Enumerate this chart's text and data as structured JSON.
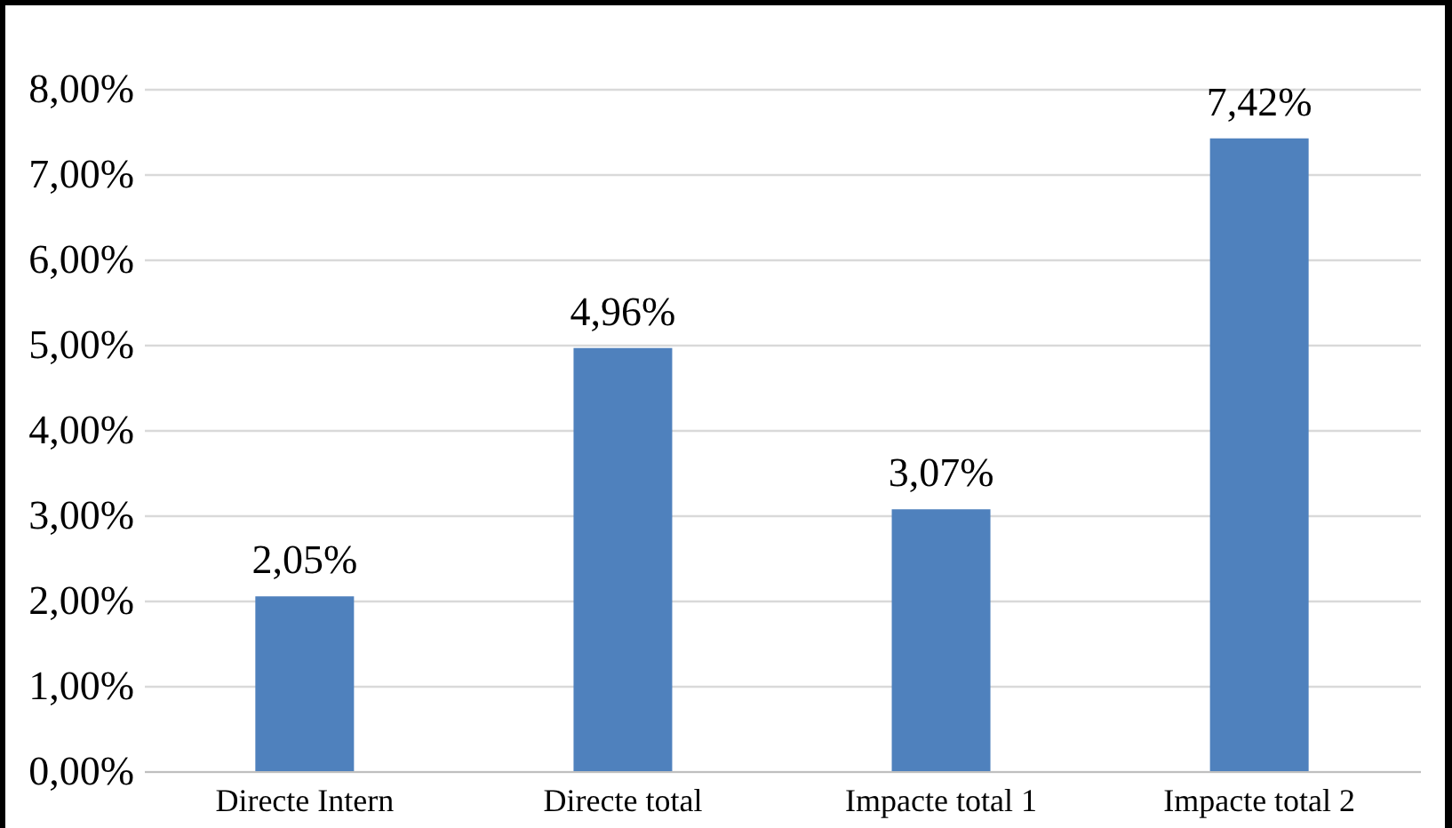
{
  "chart_data": {
    "type": "bar",
    "categories": [
      "Directe Intern",
      "Directe total",
      "Impacte total 1",
      "Impacte total 2"
    ],
    "values": [
      2.05,
      4.96,
      3.07,
      7.42
    ],
    "value_labels": [
      "2,05%",
      "4,96%",
      "3,07%",
      "7,42%"
    ],
    "color": "#4f81bd",
    "ylim": [
      0,
      8
    ],
    "yticks": [
      {
        "value": 0,
        "label": "0,00%"
      },
      {
        "value": 1,
        "label": "1,00%"
      },
      {
        "value": 2,
        "label": "2,00%"
      },
      {
        "value": 3,
        "label": "3,00%"
      },
      {
        "value": 4,
        "label": "4,00%"
      },
      {
        "value": 5,
        "label": "5,00%"
      },
      {
        "value": 6,
        "label": "6,00%"
      },
      {
        "value": 7,
        "label": "7,00%"
      },
      {
        "value": 8,
        "label": "8,00%"
      }
    ],
    "grid": "y"
  }
}
